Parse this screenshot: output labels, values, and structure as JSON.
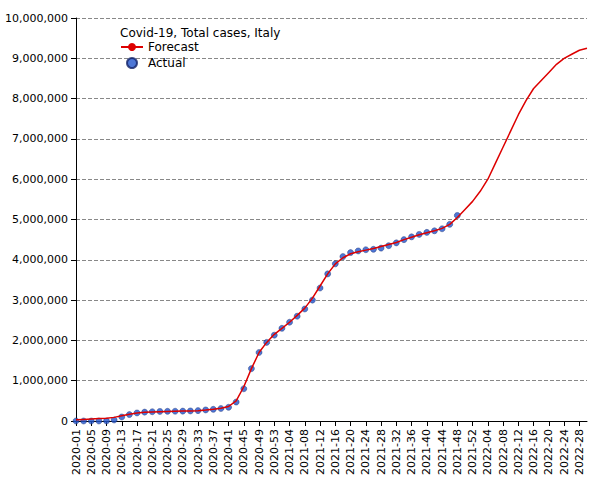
{
  "chart_data": {
    "type": "line",
    "title": "Covid-19, Total cases, Italy",
    "categories": [
      "2020-01",
      null,
      "2020-05",
      null,
      "2020-09",
      null,
      "2020-13",
      null,
      "2020-17",
      null,
      "2020-21",
      null,
      "2020-25",
      null,
      "2020-29",
      null,
      "2020-33",
      null,
      "2020-37",
      null,
      "2020-41",
      null,
      "2020-45",
      null,
      "2020-49",
      null,
      "2020-53",
      null,
      "2021-04",
      null,
      "2021-08",
      null,
      "2021-12",
      null,
      "2021-16",
      null,
      "2021-20",
      null,
      "2021-24",
      null,
      "2021-28",
      null,
      "2021-32",
      null,
      "2021-36",
      null,
      "2021-40",
      null,
      "2021-44",
      null,
      "2021-48",
      null,
      "2021-52",
      null,
      "2022-04",
      null,
      "2022-08",
      null,
      "2022-12",
      null,
      "2022-16",
      null,
      "2022-20",
      null,
      "2022-24",
      null,
      "2022-28",
      null
    ],
    "series": [
      {
        "name": "Forecast",
        "type": "line",
        "color": "#dd0000",
        "line_style": "solid",
        "values": [
          30000,
          40000,
          50000,
          60000,
          70000,
          90000,
          130000,
          170000,
          200000,
          215000,
          225000,
          232000,
          238000,
          242000,
          246000,
          250000,
          255000,
          270000,
          290000,
          315000,
          360000,
          500000,
          850000,
          1300000,
          1700000,
          1950000,
          2150000,
          2300000,
          2450000,
          2620000,
          2800000,
          3050000,
          3350000,
          3650000,
          3900000,
          4050000,
          4150000,
          4200000,
          4240000,
          4280000,
          4330000,
          4380000,
          4430000,
          4500000,
          4560000,
          4620000,
          4670000,
          4720000,
          4780000,
          4880000,
          5050000,
          5250000,
          5450000,
          5700000,
          6000000,
          6400000,
          6800000,
          7200000,
          7600000,
          7950000,
          8250000,
          8450000,
          8650000,
          8850000,
          9000000,
          9100000,
          9200000,
          9250000
        ]
      },
      {
        "name": "Actual",
        "type": "scatter",
        "color": "#2255cc",
        "marker": "circle",
        "values": [
          0,
          0,
          0,
          0,
          1000,
          25000,
          100000,
          160000,
          200000,
          220000,
          230000,
          237000,
          240000,
          242000,
          245000,
          250000,
          258000,
          275000,
          290000,
          310000,
          340000,
          470000,
          800000,
          1300000,
          1700000,
          1950000,
          2130000,
          2300000,
          2450000,
          2600000,
          2780000,
          3000000,
          3300000,
          3650000,
          3900000,
          4080000,
          4180000,
          4220000,
          4250000,
          4260000,
          4290000,
          4350000,
          4420000,
          4500000,
          4570000,
          4630000,
          4680000,
          4720000,
          4770000,
          4880000,
          5100000,
          null,
          null,
          null,
          null,
          null,
          null,
          null,
          null,
          null,
          null,
          null,
          null,
          null,
          null,
          null,
          null,
          null
        ]
      }
    ],
    "ylim": [
      0,
      10000000
    ],
    "yticks": [
      0,
      {
        "value": 1000000,
        "label": "1,000,000"
      },
      {
        "value": 2000000,
        "label": "2,000,000"
      },
      {
        "value": 3000000,
        "label": "3,000,000"
      },
      {
        "value": 4000000,
        "label": "4,000,000"
      },
      {
        "value": 5000000,
        "label": "5,000,000"
      },
      {
        "value": 6000000,
        "label": "6,000,000"
      },
      {
        "value": 7000000,
        "label": "7,000,000"
      },
      {
        "value": 8000000,
        "label": "8,000,000"
      },
      {
        "value": 9000000,
        "label": "9,000,000"
      },
      {
        "value": 10000000,
        "label": "10,000,000"
      }
    ],
    "grid": true,
    "legend": "top-left"
  }
}
